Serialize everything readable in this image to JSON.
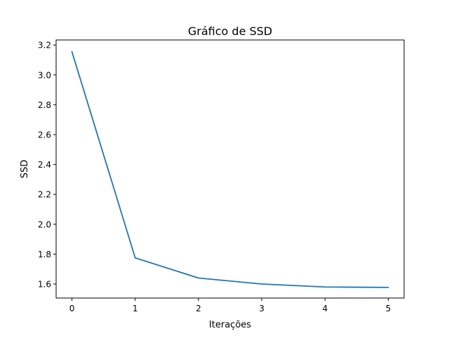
{
  "chart_data": {
    "type": "line",
    "title": "Gráfico de SSD",
    "xlabel": "Iterações",
    "ylabel": "SSD",
    "x": [
      0,
      1,
      2,
      3,
      4,
      5
    ],
    "series": [
      {
        "values": [
          3.155,
          1.775,
          1.64,
          1.6,
          1.58,
          1.577
        ],
        "color": "#1f77b4"
      }
    ],
    "xlim": [
      -0.25,
      5.25
    ],
    "ylim": [
      1.506,
      3.234
    ],
    "xticks": [
      0,
      1,
      2,
      3,
      4,
      5
    ],
    "xtick_labels": [
      "0",
      "1",
      "2",
      "3",
      "4",
      "5"
    ],
    "yticks": [
      1.6,
      1.8,
      2.0,
      2.2,
      2.4,
      2.6,
      2.8,
      3.0,
      3.2
    ],
    "ytick_labels": [
      "1.6",
      "1.8",
      "2.0",
      "2.2",
      "2.4",
      "2.6",
      "2.8",
      "3.0",
      "3.2"
    ],
    "grid": false,
    "legend": "none"
  }
}
